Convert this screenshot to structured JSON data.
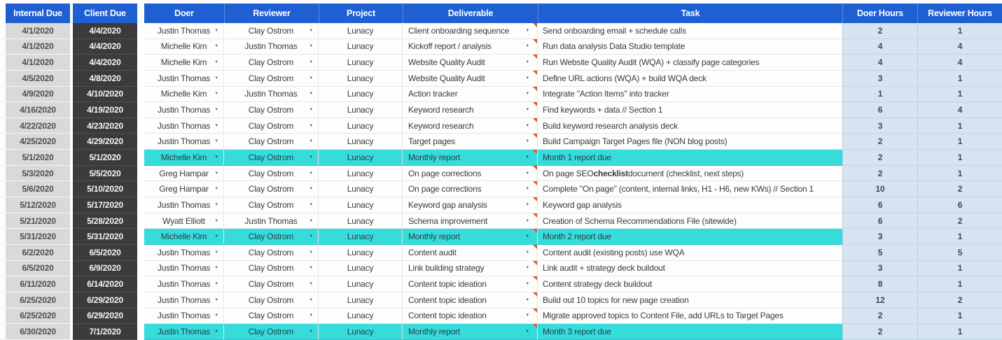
{
  "header": {
    "columns": [
      {
        "id": "internal_due",
        "label": "Internal Due"
      },
      {
        "id": "client_due",
        "label": "Client Due"
      },
      {
        "id": "doer",
        "label": "Doer"
      },
      {
        "id": "reviewer",
        "label": "Reviewer"
      },
      {
        "id": "project",
        "label": "Project"
      },
      {
        "id": "deliverable",
        "label": "Deliverable"
      },
      {
        "id": "task",
        "label": "Task"
      },
      {
        "id": "doer_hours",
        "label": "Doer Hours"
      },
      {
        "id": "reviewer_hours",
        "label": "Reviewer Hours"
      }
    ]
  },
  "colors": {
    "header_bg": "#1e60d4",
    "internal_due_bg": "#d9d9d9",
    "client_due_bg": "#3b3b3b",
    "hours_bg": "#d6e3f1",
    "highlight_bg": "#36dbdb",
    "note_indicator": "#e0552f"
  },
  "icons": {
    "dropdown": "▼"
  },
  "rows": [
    {
      "internal_due": "4/1/2020",
      "client_due": "4/4/2020",
      "doer": "Justin Thomas",
      "reviewer": "Clay Ostrom",
      "project": "Lunacy",
      "deliverable": "Client onboarding sequence",
      "task": "Send onboarding email + schedule calls",
      "doer_hours": "2",
      "reviewer_hours": "1",
      "highlighted": false,
      "note": true
    },
    {
      "internal_due": "4/1/2020",
      "client_due": "4/4/2020",
      "doer": "Michelle Kim",
      "reviewer": "Justin Thomas",
      "project": "Lunacy",
      "deliverable": "Kickoff report / analysis",
      "task": "Run data analysis Data Studio template",
      "doer_hours": "4",
      "reviewer_hours": "4",
      "highlighted": false,
      "note": true
    },
    {
      "internal_due": "4/1/2020",
      "client_due": "4/4/2020",
      "doer": "Michelle Kim",
      "reviewer": "Clay Ostrom",
      "project": "Lunacy",
      "deliverable": "Website Quality Audit",
      "task": "Run Website Quality Audit (WQA) + classify page categories",
      "doer_hours": "4",
      "reviewer_hours": "4",
      "highlighted": false,
      "note": true
    },
    {
      "internal_due": "4/5/2020",
      "client_due": "4/8/2020",
      "doer": "Justin Thomas",
      "reviewer": "Clay Ostrom",
      "project": "Lunacy",
      "deliverable": "Website Quality Audit",
      "task": "Define URL actions (WQA) + build WQA deck",
      "doer_hours": "3",
      "reviewer_hours": "1",
      "highlighted": false,
      "note": true
    },
    {
      "internal_due": "4/9/2020",
      "client_due": "4/10/2020",
      "doer": "Michelle Kim",
      "reviewer": "Justin Thomas",
      "project": "Lunacy",
      "deliverable": "Action tracker",
      "task": "Integrate \"Action Items\" into tracker",
      "doer_hours": "1",
      "reviewer_hours": "1",
      "highlighted": false,
      "note": true
    },
    {
      "internal_due": "4/16/2020",
      "client_due": "4/19/2020",
      "doer": "Justin Thomas",
      "reviewer": "Clay Ostrom",
      "project": "Lunacy",
      "deliverable": "Keyword research",
      "task": "Find keywords + data // Section 1",
      "doer_hours": "6",
      "reviewer_hours": "4",
      "highlighted": false,
      "note": true
    },
    {
      "internal_due": "4/22/2020",
      "client_due": "4/23/2020",
      "doer": "Justin Thomas",
      "reviewer": "Clay Ostrom",
      "project": "Lunacy",
      "deliverable": "Keyword research",
      "task": "Build keyword research analysis deck",
      "doer_hours": "3",
      "reviewer_hours": "1",
      "highlighted": false,
      "note": true
    },
    {
      "internal_due": "4/25/2020",
      "client_due": "4/29/2020",
      "doer": "Justin Thomas",
      "reviewer": "Clay Ostrom",
      "project": "Lunacy",
      "deliverable": "Target pages",
      "task": "Build Campaign Target Pages file (NON blog posts)",
      "doer_hours": "2",
      "reviewer_hours": "1",
      "highlighted": false,
      "note": true
    },
    {
      "internal_due": "5/1/2020",
      "client_due": "5/1/2020",
      "doer": "Michelle Kim",
      "reviewer": "Clay Ostrom",
      "project": "Lunacy",
      "deliverable": "Monthly report",
      "task": "Month 1 report due",
      "doer_hours": "2",
      "reviewer_hours": "1",
      "highlighted": true,
      "note": true
    },
    {
      "internal_due": "5/3/2020",
      "client_due": "5/5/2020",
      "doer": "Greg Hampar",
      "reviewer": "Clay Ostrom",
      "project": "Lunacy",
      "deliverable": "On page corrections",
      "task": "On page SEO **checklist** document (checklist, next steps)",
      "doer_hours": "2",
      "reviewer_hours": "1",
      "highlighted": false,
      "note": true
    },
    {
      "internal_due": "5/6/2020",
      "client_due": "5/10/2020",
      "doer": "Greg Hampar",
      "reviewer": "Clay Ostrom",
      "project": "Lunacy",
      "deliverable": "On page corrections",
      "task": "Complete \"On page\" (content, internal links, H1 - H6, new KWs) // Section 1",
      "doer_hours": "10",
      "reviewer_hours": "2",
      "highlighted": false,
      "note": true
    },
    {
      "internal_due": "5/12/2020",
      "client_due": "5/17/2020",
      "doer": "Justin Thomas",
      "reviewer": "Clay Ostrom",
      "project": "Lunacy",
      "deliverable": "Keyword gap analysis",
      "task": "Keyword gap analysis",
      "doer_hours": "6",
      "reviewer_hours": "6",
      "highlighted": false,
      "note": true
    },
    {
      "internal_due": "5/21/2020",
      "client_due": "5/28/2020",
      "doer": "Wyatt Elliott",
      "reviewer": "Justin Thomas",
      "project": "Lunacy",
      "deliverable": "Schema improvement",
      "task": "Creation of Schema Recommendations File (sitewide)",
      "doer_hours": "6",
      "reviewer_hours": "2",
      "highlighted": false,
      "note": true
    },
    {
      "internal_due": "5/31/2020",
      "client_due": "5/31/2020",
      "doer": "Michelle Kim",
      "reviewer": "Clay Ostrom",
      "project": "Lunacy",
      "deliverable": "Monthly report",
      "task": "Month 2 report due",
      "doer_hours": "3",
      "reviewer_hours": "1",
      "highlighted": true,
      "note": true
    },
    {
      "internal_due": "6/2/2020",
      "client_due": "6/5/2020",
      "doer": "Justin Thomas",
      "reviewer": "Clay Ostrom",
      "project": "Lunacy",
      "deliverable": "Content audit",
      "task": "Content audit (existing posts) use WQA",
      "doer_hours": "5",
      "reviewer_hours": "5",
      "highlighted": false,
      "note": true
    },
    {
      "internal_due": "6/5/2020",
      "client_due": "6/9/2020",
      "doer": "Justin Thomas",
      "reviewer": "Clay Ostrom",
      "project": "Lunacy",
      "deliverable": "Link building strategy",
      "task": "Link audit + strategy deck buildout",
      "doer_hours": "3",
      "reviewer_hours": "1",
      "highlighted": false,
      "note": true
    },
    {
      "internal_due": "6/11/2020",
      "client_due": "6/14/2020",
      "doer": "Justin Thomas",
      "reviewer": "Clay Ostrom",
      "project": "Lunacy",
      "deliverable": "Content topic ideation",
      "task": "Content strategy deck buildout",
      "doer_hours": "8",
      "reviewer_hours": "1",
      "highlighted": false,
      "note": true
    },
    {
      "internal_due": "6/25/2020",
      "client_due": "6/29/2020",
      "doer": "Justin Thomas",
      "reviewer": "Clay Ostrom",
      "project": "Lunacy",
      "deliverable": "Content topic ideation",
      "task": "Build out 10 topics for new page creation",
      "doer_hours": "12",
      "reviewer_hours": "2",
      "highlighted": false,
      "note": true
    },
    {
      "internal_due": "6/25/2020",
      "client_due": "6/29/2020",
      "doer": "Justin Thomas",
      "reviewer": "Clay Ostrom",
      "project": "Lunacy",
      "deliverable": "Content topic ideation",
      "task": "Migrate approved topics to Content File, add URLs to Target Pages",
      "doer_hours": "2",
      "reviewer_hours": "1",
      "highlighted": false,
      "note": true
    },
    {
      "internal_due": "6/30/2020",
      "client_due": "7/1/2020",
      "doer": "Justin Thomas",
      "reviewer": "Clay Ostrom",
      "project": "Lunacy",
      "deliverable": "Monthly report",
      "task": "Month 3 report due",
      "doer_hours": "2",
      "reviewer_hours": "1",
      "highlighted": true,
      "note": true
    }
  ]
}
